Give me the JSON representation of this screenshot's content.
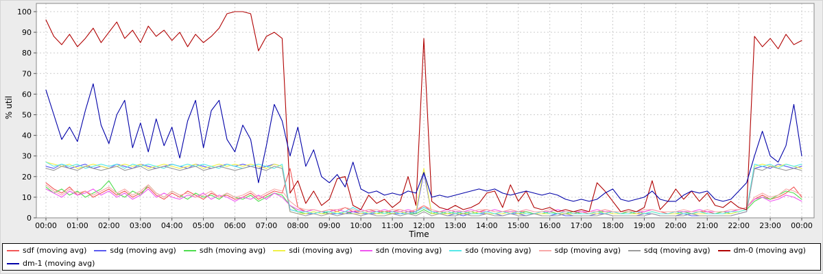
{
  "chart": {
    "ylabel": "% util",
    "xlabel": "Time",
    "background": "#ececec",
    "plot_background": "#ffffff",
    "grid_color": "#cccccc",
    "axis_color": "#888888",
    "tick_color": "#555555",
    "text_color": "#000000"
  },
  "legend": {
    "position": "bottom",
    "break_after": 9
  },
  "chart_data": {
    "type": "line",
    "title": "",
    "xlabel": "Time",
    "ylabel": "% util",
    "xlim_hours": [
      0,
      24
    ],
    "x_step_hours": 0.25,
    "ylim": [
      0,
      100
    ],
    "yticks": [
      0,
      10,
      20,
      30,
      40,
      50,
      60,
      70,
      80,
      90,
      100
    ],
    "xtick_labels": [
      "00:00",
      "01:00",
      "02:00",
      "03:00",
      "04:00",
      "05:00",
      "06:00",
      "07:00",
      "08:00",
      "09:00",
      "10:00",
      "11:00",
      "12:00",
      "13:00",
      "14:00",
      "15:00",
      "16:00",
      "17:00",
      "18:00",
      "19:00",
      "20:00",
      "21:00",
      "22:00",
      "23:00",
      "00:00"
    ],
    "grid": true,
    "legend_position": "bottom",
    "series": [
      {
        "name": "sdf",
        "label": "sdf (moving avg)",
        "color": "#f25555",
        "values": [
          17,
          14,
          12,
          15,
          11,
          13,
          10,
          12,
          14,
          11,
          13,
          10,
          12,
          15,
          11,
          9,
          12,
          10,
          13,
          11,
          9,
          12,
          10,
          11,
          9,
          10,
          12,
          9,
          11,
          13,
          12,
          24,
          5,
          3,
          4,
          3,
          4,
          3,
          5,
          3,
          3,
          4,
          3,
          3,
          3,
          4,
          3,
          3,
          6,
          3,
          3,
          2,
          3,
          3,
          2,
          3,
          4,
          3,
          3,
          4,
          3,
          3,
          2,
          3,
          3,
          2,
          3,
          2,
          3,
          2,
          3,
          4,
          3,
          2,
          3,
          2,
          3,
          4,
          3,
          2,
          3,
          3,
          2,
          3,
          3,
          2,
          3,
          3,
          4,
          5,
          9,
          11,
          9,
          10,
          12,
          15,
          10
        ]
      },
      {
        "name": "sdg",
        "label": "sdg (moving avg)",
        "color": "#5858f0",
        "values": [
          25,
          24,
          26,
          24,
          25,
          26,
          24,
          25,
          24,
          26,
          25,
          24,
          26,
          25,
          24,
          25,
          26,
          25,
          24,
          26,
          25,
          24,
          25,
          26,
          25,
          26,
          25,
          24,
          25,
          26,
          25,
          4,
          3,
          2,
          2,
          3,
          2,
          2,
          2,
          3,
          2,
          2,
          2,
          2,
          2,
          2,
          3,
          2,
          22,
          2,
          2,
          1,
          2,
          1,
          2,
          2,
          2,
          2,
          1,
          2,
          2,
          1,
          2,
          1,
          1,
          2,
          1,
          1,
          1,
          1,
          2,
          2,
          1,
          1,
          1,
          1,
          2,
          2,
          1,
          1,
          1,
          2,
          1,
          1,
          1,
          1,
          1,
          1,
          2,
          3,
          24,
          25,
          24,
          26,
          25,
          24,
          25
        ]
      },
      {
        "name": "sdh",
        "label": "sdh (moving avg)",
        "color": "#4ddd4d",
        "values": [
          15,
          12,
          14,
          11,
          13,
          10,
          12,
          14,
          18,
          12,
          10,
          13,
          11,
          16,
          12,
          10,
          13,
          11,
          9,
          12,
          10,
          11,
          9,
          12,
          10,
          9,
          11,
          8,
          10,
          12,
          11,
          6,
          3,
          2,
          3,
          2,
          3,
          2,
          3,
          2,
          2,
          3,
          2,
          3,
          2,
          3,
          2,
          2,
          4,
          2,
          3,
          2,
          3,
          2,
          3,
          2,
          3,
          2,
          2,
          3,
          2,
          3,
          2,
          2,
          3,
          2,
          2,
          3,
          2,
          2,
          3,
          3,
          2,
          2,
          3,
          2,
          2,
          3,
          2,
          2,
          2,
          3,
          2,
          3,
          2,
          2,
          3,
          2,
          3,
          4,
          8,
          10,
          9,
          11,
          13,
          12,
          9
        ]
      },
      {
        "name": "sdi",
        "label": "sdi (moving avg)",
        "color": "#f0f046",
        "values": [
          27,
          26,
          25,
          26,
          24,
          25,
          26,
          25,
          24,
          25,
          26,
          25,
          26,
          24,
          25,
          26,
          25,
          24,
          25,
          26,
          24,
          25,
          26,
          25,
          26,
          25,
          26,
          25,
          24,
          26,
          25,
          3,
          2,
          2,
          3,
          2,
          2,
          3,
          2,
          2,
          2,
          3,
          2,
          2,
          2,
          3,
          2,
          3,
          24,
          2,
          2,
          2,
          2,
          2,
          2,
          3,
          2,
          2,
          2,
          3,
          2,
          2,
          2,
          2,
          2,
          2,
          2,
          2,
          2,
          2,
          2,
          3,
          2,
          2,
          2,
          2,
          2,
          3,
          2,
          2,
          2,
          2,
          2,
          2,
          2,
          2,
          2,
          2,
          3,
          4,
          25,
          26,
          25,
          25,
          26,
          25,
          24
        ]
      },
      {
        "name": "sdn",
        "label": "sdn (moving avg)",
        "color": "#f055f0",
        "values": [
          14,
          12,
          10,
          13,
          11,
          12,
          14,
          11,
          13,
          10,
          12,
          9,
          11,
          14,
          10,
          12,
          10,
          9,
          11,
          10,
          12,
          9,
          11,
          10,
          8,
          10,
          9,
          11,
          9,
          12,
          10,
          6,
          4,
          3,
          4,
          3,
          3,
          4,
          3,
          3,
          4,
          3,
          3,
          4,
          3,
          3,
          4,
          3,
          5,
          3,
          3,
          4,
          3,
          3,
          4,
          3,
          3,
          4,
          3,
          3,
          3,
          4,
          3,
          3,
          3,
          4,
          3,
          3,
          3,
          3,
          4,
          3,
          3,
          3,
          3,
          3,
          3,
          4,
          3,
          3,
          3,
          3,
          3,
          4,
          3,
          3,
          3,
          3,
          4,
          5,
          9,
          10,
          8,
          9,
          11,
          10,
          8
        ]
      },
      {
        "name": "sdo",
        "label": "sdo (moving avg)",
        "color": "#55e8e8",
        "values": [
          27,
          25,
          26,
          25,
          26,
          24,
          25,
          26,
          25,
          26,
          24,
          26,
          25,
          26,
          25,
          24,
          26,
          25,
          26,
          25,
          26,
          25,
          24,
          26,
          25,
          24,
          25,
          26,
          25,
          24,
          26,
          4,
          3,
          3,
          2,
          3,
          3,
          2,
          3,
          5,
          3,
          2,
          3,
          2,
          3,
          2,
          2,
          3,
          5,
          3,
          2,
          3,
          2,
          3,
          2,
          2,
          3,
          2,
          3,
          2,
          3,
          2,
          2,
          3,
          2,
          2,
          3,
          2,
          2,
          2,
          3,
          2,
          3,
          2,
          2,
          3,
          2,
          3,
          2,
          2,
          3,
          2,
          2,
          3,
          2,
          2,
          2,
          3,
          3,
          4,
          26,
          25,
          26,
          24,
          26,
          25,
          26
        ]
      },
      {
        "name": "sdp",
        "label": "sdp (moving avg)",
        "color": "#f8a8a8",
        "values": [
          16,
          13,
          11,
          14,
          12,
          13,
          11,
          13,
          15,
          12,
          14,
          11,
          13,
          16,
          12,
          10,
          13,
          11,
          12,
          10,
          11,
          13,
          10,
          12,
          10,
          11,
          13,
          10,
          12,
          14,
          13,
          8,
          5,
          4,
          4,
          3,
          4,
          4,
          5,
          4,
          3,
          4,
          4,
          3,
          4,
          4,
          3,
          4,
          6,
          4,
          3,
          3,
          4,
          3,
          3,
          4,
          4,
          3,
          3,
          4,
          3,
          4,
          3,
          3,
          4,
          3,
          3,
          3,
          4,
          3,
          3,
          4,
          3,
          3,
          3,
          3,
          4,
          4,
          3,
          3,
          3,
          4,
          3,
          3,
          4,
          3,
          3,
          4,
          4,
          5,
          10,
          12,
          10,
          11,
          14,
          13,
          11
        ]
      },
      {
        "name": "sdq",
        "label": "sdq (moving avg)",
        "color": "#9b9b9b",
        "values": [
          24,
          23,
          25,
          24,
          23,
          25,
          24,
          23,
          24,
          25,
          23,
          24,
          25,
          23,
          24,
          25,
          24,
          23,
          24,
          25,
          23,
          24,
          25,
          24,
          23,
          24,
          25,
          24,
          23,
          25,
          24,
          3,
          2,
          1,
          2,
          1,
          2,
          1,
          2,
          2,
          1,
          2,
          1,
          1,
          2,
          1,
          2,
          1,
          3,
          1,
          2,
          1,
          1,
          2,
          1,
          1,
          2,
          1,
          1,
          2,
          1,
          1,
          2,
          1,
          1,
          1,
          2,
          1,
          1,
          1,
          1,
          2,
          1,
          1,
          1,
          1,
          1,
          2,
          1,
          1,
          1,
          1,
          2,
          1,
          1,
          1,
          1,
          1,
          2,
          3,
          24,
          23,
          25,
          24,
          23,
          24,
          23
        ]
      },
      {
        "name": "dm-0",
        "label": "dm-0 (moving avg)",
        "color": "#b00000",
        "values": [
          96,
          88,
          84,
          89,
          83,
          87,
          92,
          85,
          90,
          95,
          87,
          91,
          85,
          93,
          88,
          91,
          86,
          90,
          83,
          89,
          85,
          88,
          92,
          99,
          100,
          100,
          99,
          81,
          88,
          90,
          87,
          12,
          18,
          7,
          13,
          6,
          9,
          19,
          20,
          6,
          4,
          11,
          7,
          9,
          5,
          8,
          20,
          6,
          87,
          8,
          5,
          4,
          6,
          4,
          5,
          7,
          12,
          13,
          5,
          16,
          8,
          13,
          5,
          4,
          5,
          3,
          4,
          3,
          4,
          3,
          17,
          13,
          8,
          3,
          4,
          3,
          5,
          18,
          4,
          8,
          14,
          9,
          13,
          8,
          12,
          6,
          5,
          8,
          5,
          4,
          88,
          83,
          87,
          82,
          89,
          84,
          86
        ]
      },
      {
        "name": "dm-1",
        "label": "dm-1 (moving avg)",
        "color": "#0000a8",
        "values": [
          62,
          50,
          38,
          44,
          37,
          52,
          65,
          45,
          36,
          50,
          57,
          34,
          46,
          32,
          48,
          35,
          44,
          29,
          47,
          57,
          34,
          52,
          57,
          38,
          32,
          45,
          38,
          17,
          35,
          55,
          47,
          30,
          44,
          25,
          33,
          20,
          17,
          21,
          15,
          27,
          14,
          12,
          13,
          11,
          12,
          11,
          13,
          12,
          22,
          10,
          11,
          10,
          11,
          12,
          13,
          14,
          13,
          14,
          12,
          11,
          12,
          13,
          12,
          11,
          12,
          11,
          9,
          8,
          9,
          8,
          9,
          12,
          14,
          9,
          8,
          9,
          10,
          13,
          9,
          8,
          8,
          11,
          13,
          12,
          13,
          9,
          8,
          9,
          13,
          17,
          30,
          42,
          30,
          27,
          35,
          55,
          30
        ]
      }
    ]
  }
}
